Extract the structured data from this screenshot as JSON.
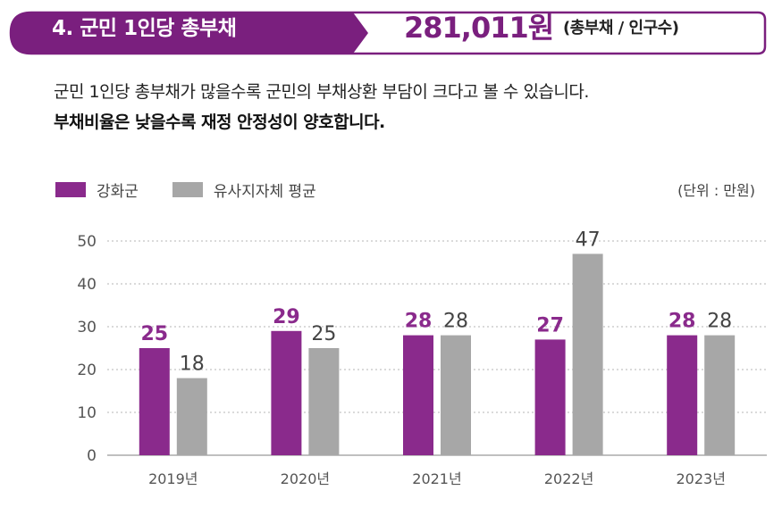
{
  "header": {
    "title": "4. 군민 1인당 총부채",
    "value": "281,011원",
    "unit_note": "(총부채 / 인구수)"
  },
  "description": {
    "line1": "군민 1인당 총부채가 많을수록 군민의 부채상환 부담이 크다고 볼 수 있습니다.",
    "line2": "부채비율은 낮을수록 재정 안정성이 양호합니다."
  },
  "colors": {
    "accent": "#8a2a8c",
    "gray": "#a7a7a7",
    "banner_border": "#7a1f7e"
  },
  "chart_data": {
    "type": "bar",
    "unit": "(단위 : 만원)",
    "categories": [
      "2019년",
      "2020년",
      "2021년",
      "2022년",
      "2023년"
    ],
    "series": [
      {
        "name": "강화군",
        "values": [
          25,
          29,
          28,
          27,
          28
        ]
      },
      {
        "name": "유사지자체 평균",
        "values": [
          18,
          25,
          28,
          47,
          28
        ]
      }
    ],
    "ylim": [
      0,
      50
    ],
    "yticks": [
      0,
      10,
      20,
      30,
      40,
      50
    ],
    "grid": true,
    "legend": "top-left"
  }
}
